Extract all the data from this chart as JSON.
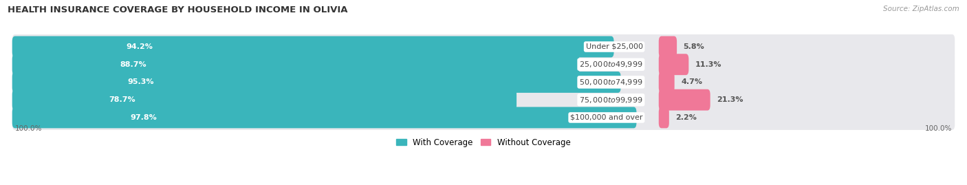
{
  "title": "HEALTH INSURANCE COVERAGE BY HOUSEHOLD INCOME IN OLIVIA",
  "source": "Source: ZipAtlas.com",
  "categories": [
    "Under $25,000",
    "$25,000 to $49,999",
    "$50,000 to $74,999",
    "$75,000 to $99,999",
    "$100,000 and over"
  ],
  "with_coverage": [
    94.2,
    88.7,
    95.3,
    78.7,
    97.8
  ],
  "without_coverage": [
    5.8,
    11.3,
    4.7,
    21.3,
    2.2
  ],
  "color_coverage": "#3ab5bb",
  "color_without": "#f07898",
  "color_bg_bar": "#e8e8ec",
  "color_bg_bar_alt": "#f2f2f5",
  "figsize": [
    14.06,
    2.69
  ],
  "dpi": 100,
  "label_left_100": "100.0%",
  "label_right_100": "100.0%"
}
